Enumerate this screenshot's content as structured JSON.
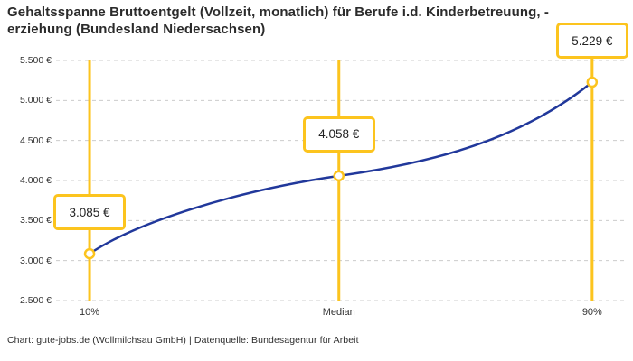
{
  "title": {
    "lines": [
      "Gehaltsspanne Bruttoentgelt (Vollzeit, monatlich) für Berufe i.d. Kinderbetreuung, -",
      "erziehung (Bundesland Niedersachsen)"
    ]
  },
  "footer": {
    "text": "Chart: gute-jobs.de (Wollmilchsau GmbH) | Datenquelle: Bundesagentur für Arbeit"
  },
  "chart_data": {
    "type": "line",
    "title": "Gehaltsspanne Bruttoentgelt (Vollzeit, monatlich) für Berufe i.d. Kinderbetreuung, -erziehung (Bundesland Niedersachsen)",
    "x": [
      "10%",
      "Median",
      "90%"
    ],
    "series": [
      {
        "name": "Bruttoentgelt",
        "values": [
          3085,
          4058,
          5229
        ]
      }
    ],
    "point_labels": [
      "3.085 €",
      "4.058 €",
      "5.229 €"
    ],
    "xlabel": "",
    "ylabel": "",
    "ylim": [
      2500,
      5500
    ],
    "yticks": [
      2500,
      3000,
      3500,
      4000,
      4500,
      5000,
      5500
    ],
    "ytick_labels": [
      "2.500 €",
      "3.000 €",
      "3.500 €",
      "4.000 €",
      "4.500 €",
      "5.000 €",
      "5.500 €"
    ],
    "grid": "dashed-horizontal",
    "legend": "none",
    "colors": {
      "line": "#21389B",
      "marker": "#FCC41E",
      "label_border": "#FCC41E",
      "grid": "#CCCCCC",
      "text": "#333333"
    }
  }
}
